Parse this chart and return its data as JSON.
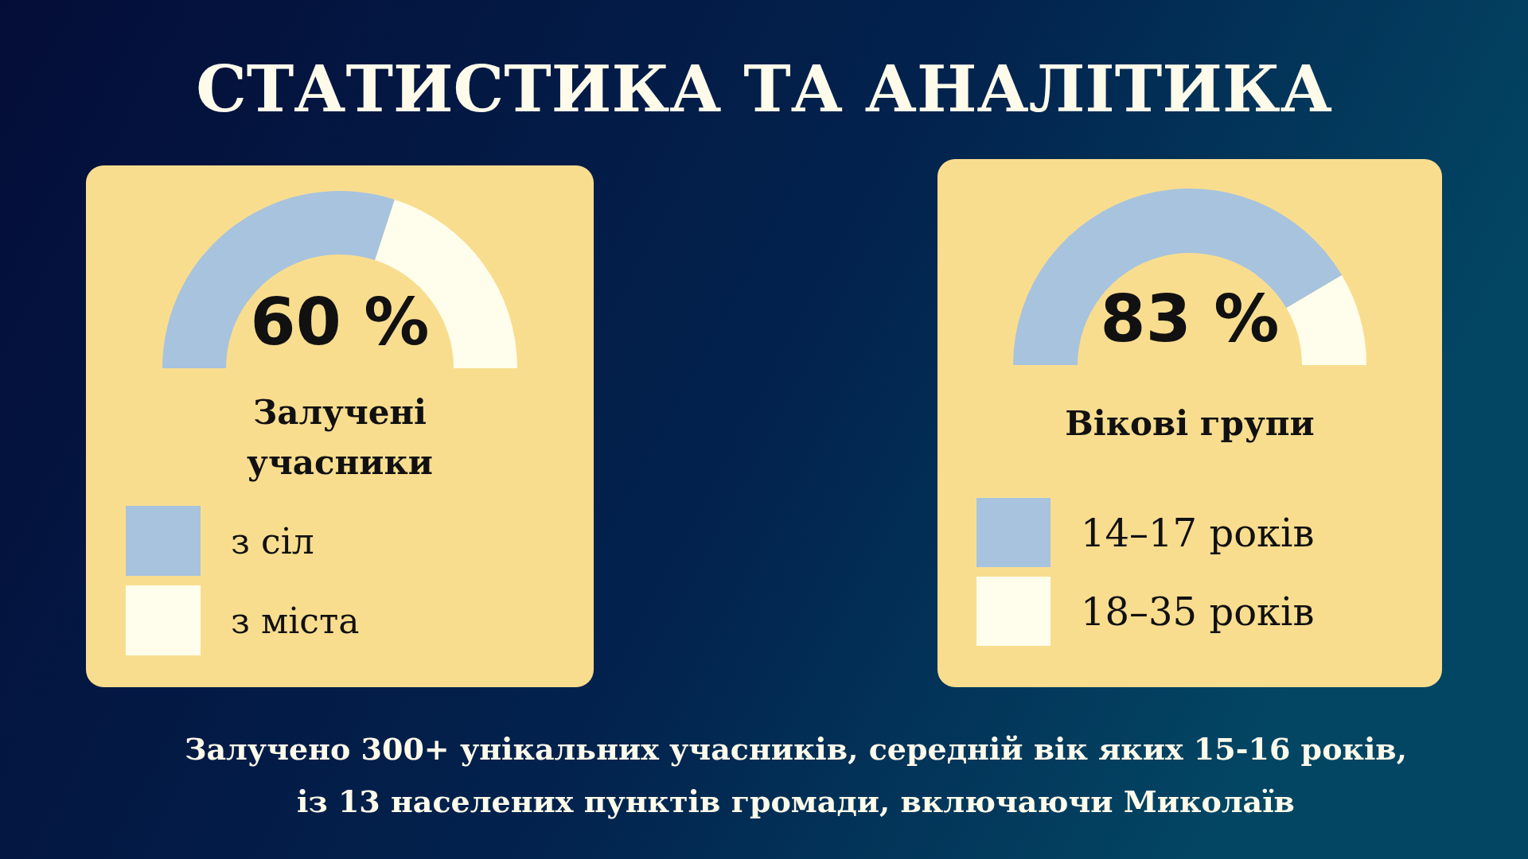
{
  "chart_data": [
    {
      "type": "other",
      "title": "СТАТИСТИКА ТА АНАЛІТИКА",
      "annotations": [
        "Залучено 300+ унікальних учасників, середній вік яких 15-16 років, із 13 населених пунктів громади, включаючи Миколаїв"
      ]
    },
    {
      "type": "donut",
      "title": "Залучені учасники",
      "categories": [
        "з сіл",
        "з міста"
      ],
      "values": [
        60,
        40
      ],
      "colors": [
        "#a7c3de",
        "#fffdeb"
      ],
      "value_labels": [
        "60 %",
        null
      ],
      "legend": "bottom"
    },
    {
      "type": "donut",
      "title": "Вікові групи",
      "categories": [
        "14–17 років",
        "18–35 років"
      ],
      "values": [
        83,
        17
      ],
      "colors": [
        "#a7c3de",
        "#fffdeb"
      ],
      "value_labels": [
        "83 %",
        null
      ],
      "legend": "bottom"
    }
  ]
}
